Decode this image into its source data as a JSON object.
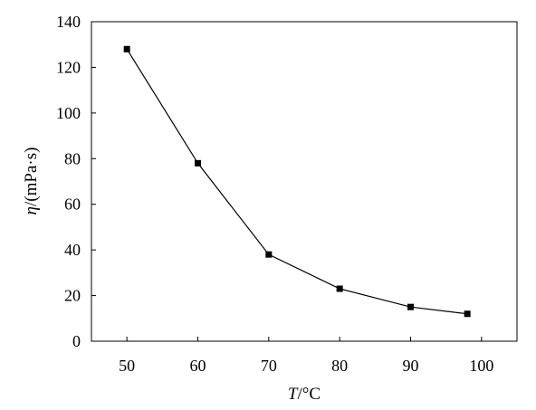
{
  "chart_data": {
    "type": "line",
    "title": "",
    "xlabel_var": "T",
    "xlabel_unit": "/°C",
    "ylabel_var": "η",
    "ylabel_unit": "/(mPa·s)",
    "x": [
      50,
      60,
      70,
      80,
      90,
      98
    ],
    "y": [
      128,
      78,
      38,
      23,
      15,
      12
    ],
    "xlim": [
      45,
      105
    ],
    "ylim": [
      0,
      140
    ],
    "xticks": [
      50,
      60,
      70,
      80,
      90,
      100
    ],
    "yticks": [
      0,
      20,
      40,
      60,
      80,
      100,
      120,
      140
    ],
    "marker": "square",
    "line_color": "#000000",
    "grid": false,
    "legend": "none"
  }
}
